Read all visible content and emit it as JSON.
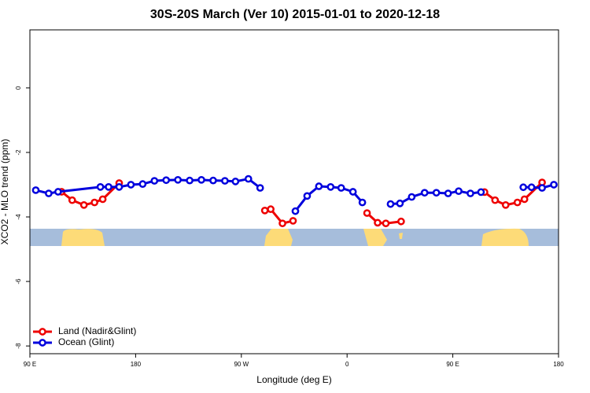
{
  "chart_data": {
    "type": "line",
    "title": "30S-20S March (Ver 10)   2015-01-01 to 2020-12-18",
    "x_label": "Longitude (deg E)",
    "y_label": "XCO2 - MLO trend (ppm)",
    "xlim": [
      90,
      540
    ],
    "ylim": [
      -8.24,
      1.8
    ],
    "xticks": [
      {
        "value": 90,
        "label": "90 E"
      },
      180,
      {
        "value": 270,
        "label": "90 W"
      },
      {
        "value": 360,
        "label": "0"
      },
      {
        "value": 450,
        "label": "90 E"
      },
      {
        "value": 540,
        "label": "180"
      }
    ],
    "yticks": [
      -8,
      -6,
      -4,
      -2,
      0
    ],
    "legend": "bottom-left",
    "series": [
      {
        "name": "Land (Nadir&Glint)",
        "color": "#ee0000",
        "x": [
          117,
          126,
          136,
          145,
          152,
          166,
          null,
          290,
          295,
          305,
          314,
          null,
          377,
          386,
          393,
          406,
          null,
          477,
          486,
          495,
          505,
          511,
          526
        ],
        "values": [
          -3.22,
          -3.48,
          -3.63,
          -3.55,
          -3.45,
          -2.95,
          null,
          -3.8,
          -3.76,
          -4.2,
          -4.12,
          null,
          -3.88,
          -4.18,
          -4.2,
          -4.14,
          null,
          -3.23,
          -3.48,
          -3.63,
          -3.55,
          -3.45,
          -2.93
        ]
      },
      {
        "name": "Ocean (Glint)",
        "color": "#0000dd",
        "x": [
          95,
          106,
          114,
          150,
          157,
          166,
          176,
          186,
          196,
          206,
          216,
          226,
          236,
          246,
          256,
          265,
          276,
          286,
          null,
          316,
          326,
          336,
          346,
          355,
          365,
          373,
          null,
          397,
          405,
          415,
          426,
          436,
          446,
          455,
          465,
          474,
          null,
          510,
          517,
          526,
          536
        ],
        "values": [
          -3.17,
          -3.27,
          -3.22,
          -3.07,
          -3.07,
          -3.07,
          -3.0,
          -2.98,
          -2.88,
          -2.86,
          -2.85,
          -2.87,
          -2.85,
          -2.87,
          -2.88,
          -2.9,
          -2.82,
          -3.1,
          null,
          -3.82,
          -3.35,
          -3.05,
          -3.07,
          -3.1,
          -3.22,
          -3.55,
          null,
          -3.6,
          -3.58,
          -3.38,
          -3.25,
          -3.25,
          -3.27,
          -3.2,
          -3.27,
          -3.23,
          null,
          -3.08,
          -3.08,
          -3.1,
          -3.0
        ]
      }
    ]
  }
}
